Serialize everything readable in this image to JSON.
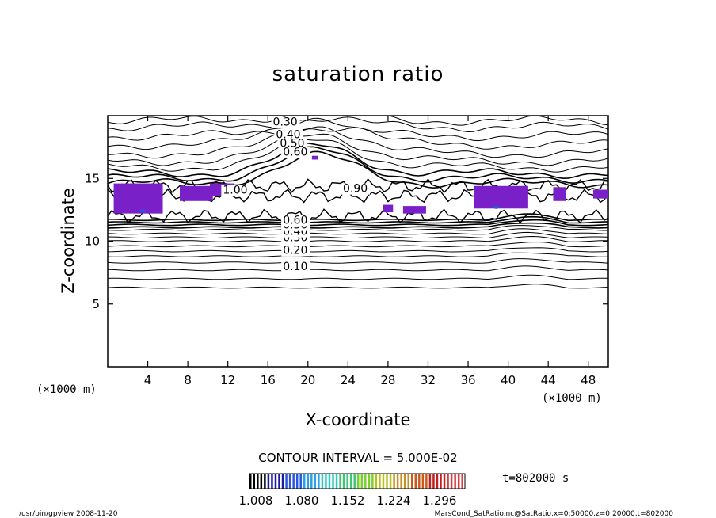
{
  "chart_data": {
    "type": "contour",
    "title": "saturation ratio",
    "xlabel": "X-coordinate",
    "ylabel": "Z-coordinate",
    "x_unit": "(×1000 m)",
    "y_unit": "(×1000 m)",
    "xlim": [
      0,
      50
    ],
    "ylim": [
      0,
      20
    ],
    "x_ticks": [
      4,
      8,
      12,
      16,
      20,
      24,
      28,
      32,
      36,
      40,
      44,
      48
    ],
    "y_ticks": [
      5,
      10,
      15
    ],
    "contour_labels": [
      {
        "text": "0.10",
        "x": 17.5,
        "z": 7.7
      },
      {
        "text": "0.20",
        "x": 17.5,
        "z": 9.0
      },
      {
        "text": "0.30",
        "x": 17.5,
        "z": 10.0
      },
      {
        "text": "0.40",
        "x": 17.5,
        "z": 10.5
      },
      {
        "text": "0.50",
        "x": 17.5,
        "z": 11.0
      },
      {
        "text": "0.60",
        "x": 17.5,
        "z": 11.4
      },
      {
        "text": "1.00",
        "x": 11.5,
        "z": 13.8
      },
      {
        "text": "0.30",
        "x": 16.5,
        "z": 19.2
      },
      {
        "text": "0.40",
        "x": 16.8,
        "z": 18.2
      },
      {
        "text": "0.50",
        "x": 17.2,
        "z": 17.5
      },
      {
        "text": "0.60",
        "x": 17.5,
        "z": 16.8
      },
      {
        "text": "0.90",
        "x": 23.5,
        "z": 13.9
      }
    ],
    "contour_interval": "CONTOUR INTERVAL = 5.000E-02",
    "colorbar": {
      "min": 1.008,
      "max": 1.296,
      "tick_labels": [
        "1.008",
        "1.080",
        "1.152",
        "1.224",
        "1.296"
      ],
      "colors": [
        "#000000",
        "#1a1a9a",
        "#2a55e0",
        "#2aa0e8",
        "#30c8c0",
        "#3ec870",
        "#7ad030",
        "#b8c020",
        "#c89020",
        "#c85a20",
        "#c02020",
        "#d04040"
      ]
    },
    "shaded_color": "#7a20c8",
    "time_label": "t=802000 s"
  },
  "footer": {
    "left": "/usr/bin/gpview   2008-11-20",
    "right": "MarsCond_SatRatio.nc@SatRatio,x=0:50000,z=0:20000,t=802000"
  }
}
